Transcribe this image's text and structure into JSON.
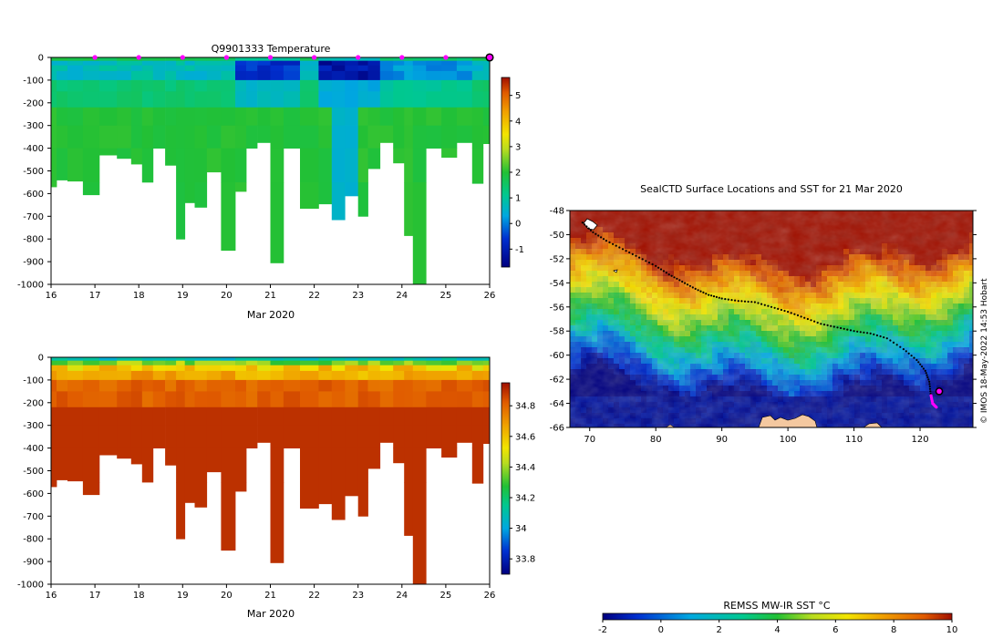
{
  "watermark": "© IMOS 18-May-2022 14:53 Hobart",
  "temperature_panel": {
    "title": "Q9901333  Temperature",
    "xlabel": "Mar 2020",
    "colorbar_ticks": [
      "-1",
      "0",
      "1",
      "2",
      "3",
      "4",
      "5"
    ]
  },
  "salinity_panel": {
    "title": "",
    "xlabel": "Mar 2020",
    "colorbar_ticks": [
      "33.8",
      "34",
      "34.2",
      "34.4",
      "34.6",
      "34.8"
    ]
  },
  "map_panel": {
    "title": "SealCTD Surface Locations and SST for 21 Mar 2020",
    "colorbar_label": "REMSS MW-IR SST °C",
    "colorbar_ticks": [
      "-2",
      "0",
      "2",
      "4",
      "6",
      "8",
      "10"
    ]
  },
  "chart_data": [
    {
      "type": "heatmap",
      "title": "Q9901333  Temperature",
      "xlabel": "Mar 2020",
      "ylabel": "",
      "x_ticks": [
        "16",
        "17",
        "18",
        "19",
        "20",
        "21",
        "22",
        "23",
        "24",
        "25",
        "26"
      ],
      "y_ticks": [
        "0",
        "-100",
        "-200",
        "-300",
        "-400",
        "-500",
        "-600",
        "-700",
        "-800",
        "-900",
        "-1000"
      ],
      "xlim": [
        16,
        26
      ],
      "ylim": [
        -1000,
        0
      ],
      "colorbar": {
        "range": [
          -1.7,
          5.7
        ],
        "ticks": [
          -1,
          0,
          1,
          2,
          3,
          4,
          5
        ]
      },
      "profiles": [
        {
          "t": 16.05,
          "max_depth": 570
        },
        {
          "t": 16.2,
          "max_depth": 540
        },
        {
          "t": 16.55,
          "max_depth": 545
        },
        {
          "t": 16.9,
          "max_depth": 605
        },
        {
          "t": 17.3,
          "max_depth": 430
        },
        {
          "t": 17.7,
          "max_depth": 445
        },
        {
          "t": 17.95,
          "max_depth": 470
        },
        {
          "t": 18.2,
          "max_depth": 550
        },
        {
          "t": 18.45,
          "max_depth": 400
        },
        {
          "t": 18.75,
          "max_depth": 475
        },
        {
          "t": 18.95,
          "max_depth": 800
        },
        {
          "t": 19.15,
          "max_depth": 640
        },
        {
          "t": 19.4,
          "max_depth": 660
        },
        {
          "t": 19.7,
          "max_depth": 505
        },
        {
          "t": 20.05,
          "max_depth": 850
        },
        {
          "t": 20.35,
          "max_depth": 590
        },
        {
          "t": 20.55,
          "max_depth": 400
        },
        {
          "t": 20.85,
          "max_depth": 375
        },
        {
          "t": 21.15,
          "max_depth": 905
        },
        {
          "t": 21.45,
          "max_depth": 400
        },
        {
          "t": 21.9,
          "max_depth": 665
        },
        {
          "t": 22.3,
          "max_depth": 645
        },
        {
          "t": 22.5,
          "max_depth": 715
        },
        {
          "t": 22.9,
          "max_depth": 610
        },
        {
          "t": 23.1,
          "max_depth": 700
        },
        {
          "t": 23.35,
          "max_depth": 490
        },
        {
          "t": 23.65,
          "max_depth": 375
        },
        {
          "t": 23.95,
          "max_depth": 465
        },
        {
          "t": 24.15,
          "max_depth": 785
        },
        {
          "t": 24.35,
          "max_depth": 1010
        },
        {
          "t": 24.75,
          "max_depth": 400
        },
        {
          "t": 25.05,
          "max_depth": 440
        },
        {
          "t": 25.45,
          "max_depth": 375
        },
        {
          "t": 25.75,
          "max_depth": 555
        },
        {
          "t": 25.95,
          "max_depth": 380
        }
      ],
      "surface_points": [
        17,
        18,
        19,
        20,
        21,
        22,
        23,
        24,
        25
      ],
      "current_point": 26
    },
    {
      "type": "heatmap",
      "title": "",
      "xlabel": "Mar 2020",
      "ylabel": "",
      "x_ticks": [
        "16",
        "17",
        "18",
        "19",
        "20",
        "21",
        "22",
        "23",
        "24",
        "25",
        "26"
      ],
      "y_ticks": [
        "0",
        "-100",
        "-200",
        "-300",
        "-400",
        "-500",
        "-600",
        "-700",
        "-800",
        "-900",
        "-1000"
      ],
      "xlim": [
        16,
        26
      ],
      "ylim": [
        -1000,
        0
      ],
      "colorbar": {
        "range": [
          33.7,
          34.95
        ],
        "ticks": [
          33.8,
          34,
          34.2,
          34.4,
          34.6,
          34.8
        ]
      }
    },
    {
      "type": "heatmap",
      "title": "SealCTD Surface Locations and SST for 21 Mar 2020",
      "xlabel": "",
      "ylabel": "",
      "x_ticks": [
        "70",
        "80",
        "90",
        "100",
        "110",
        "120"
      ],
      "y_ticks": [
        "-48",
        "-50",
        "-52",
        "-54",
        "-56",
        "-58",
        "-60",
        "-62",
        "-64",
        "-66"
      ],
      "xlim": [
        67,
        128
      ],
      "ylim": [
        -66,
        -48
      ],
      "colorbar": {
        "label": "REMSS MW-IR SST °C",
        "range": [
          -2,
          10
        ],
        "ticks": [
          -2,
          0,
          2,
          4,
          6,
          8,
          10
        ]
      },
      "track": [
        [
          68.9,
          -49.0
        ],
        [
          70.5,
          -49.8
        ],
        [
          72.5,
          -50.5
        ],
        [
          75,
          -51.2
        ],
        [
          77.5,
          -51.9
        ],
        [
          80,
          -52.6
        ],
        [
          82,
          -53.3
        ],
        [
          84,
          -53.9
        ],
        [
          86,
          -54.5
        ],
        [
          88,
          -55.0
        ],
        [
          90,
          -55.3
        ],
        [
          92.5,
          -55.5
        ],
        [
          95,
          -55.6
        ],
        [
          97.5,
          -56.0
        ],
        [
          100,
          -56.4
        ],
        [
          102.5,
          -56.9
        ],
        [
          105,
          -57.4
        ],
        [
          107.5,
          -57.7
        ],
        [
          110,
          -58.0
        ],
        [
          112.5,
          -58.2
        ],
        [
          115,
          -58.6
        ],
        [
          117.5,
          -59.5
        ],
        [
          119.5,
          -60.4
        ],
        [
          120.8,
          -61.3
        ],
        [
          121.4,
          -62.2
        ],
        [
          121.6,
          -63.2
        ],
        [
          121.9,
          -64.0
        ],
        [
          122.6,
          -64.4
        ]
      ],
      "current_location": [
        122.9,
        -63.0
      ]
    }
  ]
}
